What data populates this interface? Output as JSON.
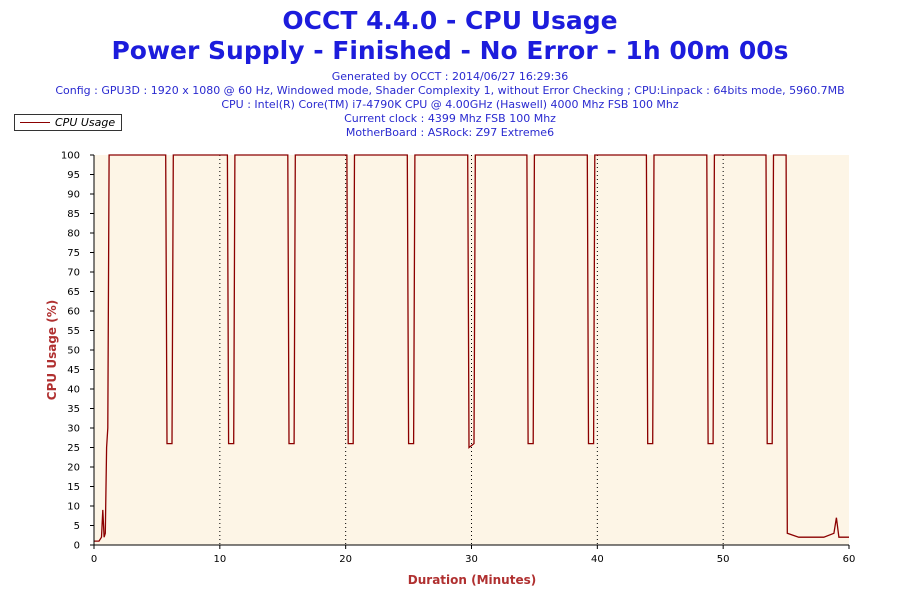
{
  "header": {
    "title": "OCCT 4.4.0 - CPU Usage",
    "subtitle": "Power Supply - Finished - No Error - 1h 00m 00s",
    "info_lines": [
      "Generated by OCCT : 2014/06/27 16:29:36",
      "Config : GPU3D : 1920 x 1080 @ 60 Hz, Windowed mode, Shader Complexity 1, without Error Checking ; CPU:Linpack : 64bits mode, 5960.7MB",
      "CPU : Intel(R) Core(TM) i7-4790K CPU @ 4.00GHz (Haswell) 4000 Mhz FSB 100 Mhz",
      "Current clock : 4399 Mhz FSB 100 Mhz",
      "MotherBoard : ASRock: Z97 Extreme6"
    ]
  },
  "legend": {
    "label": "CPU Usage",
    "placement": "top-left"
  },
  "colors": {
    "title": "#1c1cdc",
    "axis_label": "#b03030",
    "series": "#8b0000",
    "plot_background": "#fdf5e6"
  },
  "chart_data": {
    "type": "line",
    "xlabel": "Duration (Minutes)",
    "ylabel": "CPU Usage (%)",
    "xlim": [
      0,
      60
    ],
    "ylim": [
      0,
      100
    ],
    "x_ticks": [
      0,
      10,
      20,
      30,
      40,
      50,
      60
    ],
    "y_ticks": [
      0,
      5,
      10,
      15,
      20,
      25,
      30,
      35,
      40,
      45,
      50,
      55,
      60,
      65,
      70,
      75,
      80,
      85,
      90,
      95,
      100
    ],
    "grid": "vertical dotted lines at x ticks",
    "series": [
      {
        "name": "CPU Usage",
        "x": [
          0,
          0.4,
          0.6,
          0.7,
          0.8,
          0.9,
          1.0,
          1.1,
          1.2,
          5.7,
          5.8,
          6.2,
          6.3,
          10.6,
          10.7,
          11.1,
          11.2,
          15.4,
          15.5,
          15.9,
          16.0,
          20.1,
          20.2,
          20.6,
          20.7,
          24.9,
          25.0,
          25.4,
          25.5,
          29.7,
          29.8,
          30.2,
          30.3,
          34.4,
          34.5,
          34.9,
          35.0,
          39.2,
          39.3,
          39.7,
          39.8,
          43.9,
          44.0,
          44.4,
          44.5,
          48.7,
          48.8,
          49.2,
          49.3,
          53.4,
          53.5,
          53.9,
          54.0,
          55.0,
          55.1,
          56.0,
          57.0,
          58.0,
          58.8,
          59.0,
          59.2,
          60.0
        ],
        "y": [
          1,
          1,
          2,
          9,
          2,
          3,
          25,
          30,
          100,
          100,
          26,
          26,
          100,
          100,
          26,
          26,
          100,
          100,
          26,
          26,
          100,
          100,
          26,
          26,
          100,
          100,
          26,
          26,
          100,
          100,
          25,
          26,
          100,
          100,
          26,
          26,
          100,
          100,
          26,
          26,
          100,
          100,
          26,
          26,
          100,
          100,
          26,
          26,
          100,
          100,
          26,
          26,
          100,
          100,
          3,
          2,
          2,
          2,
          3,
          7,
          2,
          2
        ]
      }
    ]
  }
}
